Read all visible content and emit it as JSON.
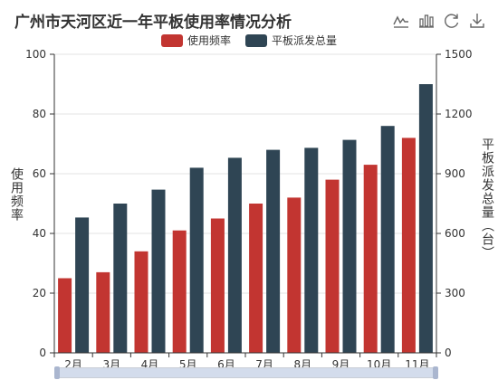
{
  "title": "广州市天河区近一年平板使用率情况分析",
  "toolbox": [
    "line-chart-icon",
    "bar-chart-icon",
    "refresh-icon",
    "download-icon"
  ],
  "chart_data": {
    "type": "bar",
    "categories": [
      "2月",
      "3月",
      "4月",
      "5月",
      "6月",
      "7月",
      "8月",
      "9月",
      "10月",
      "11月"
    ],
    "series": [
      {
        "name": "使用频率",
        "color": "#c23531",
        "axis": "left",
        "values": [
          25,
          27,
          34,
          41,
          45,
          50,
          52,
          58,
          63,
          72
        ]
      },
      {
        "name": "平板派发总量",
        "color": "#2f4554",
        "axis": "right",
        "values": [
          680,
          750,
          820,
          930,
          980,
          1020,
          1030,
          1070,
          1140,
          1350
        ]
      }
    ],
    "ylabel_left": "使用频率",
    "ylabel_right": "平板派发总量（台）",
    "ylim_left": [
      0,
      100
    ],
    "yticks_left": [
      0,
      20,
      40,
      60,
      80,
      100
    ],
    "ylim_right": [
      0,
      1500
    ],
    "yticks_right": [
      0,
      300,
      600,
      900,
      1200,
      1500
    ],
    "grid": true,
    "legend_position": "top-center",
    "datazoom": true
  }
}
